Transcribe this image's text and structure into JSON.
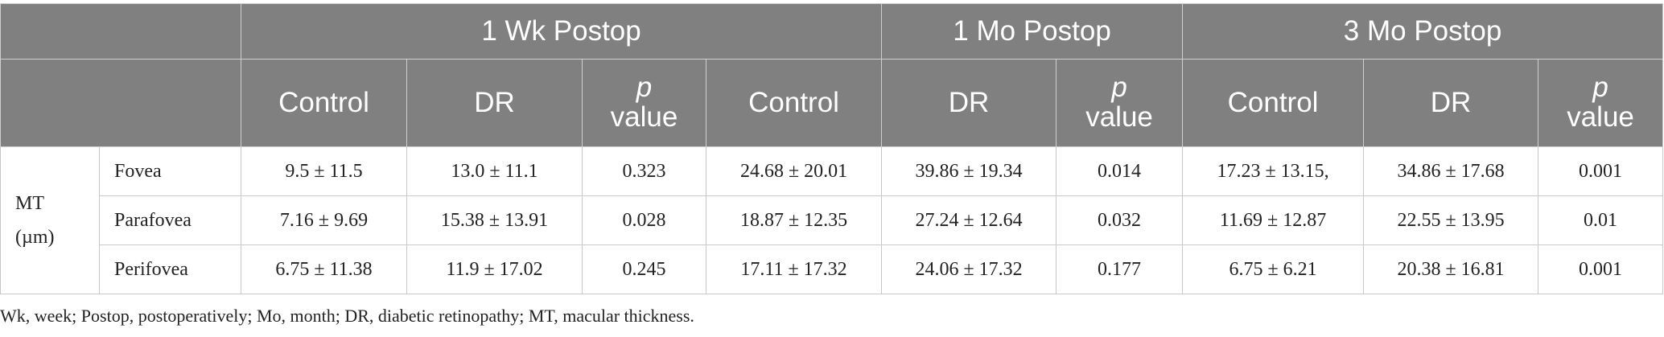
{
  "table": {
    "groups": [
      "1 Wk Postop",
      "1 Mo Postop",
      "3 Mo Postop"
    ],
    "subheaders": [
      "Control",
      "DR",
      [
        "p",
        "value"
      ],
      "Control",
      "DR",
      [
        "p",
        "value"
      ],
      "Control",
      "DR",
      [
        "p",
        "value"
      ]
    ],
    "row_group": [
      "MT",
      "(µm)"
    ],
    "rows": [
      {
        "label": "Fovea",
        "cells": [
          "9.5 ± 11.5",
          "13.0 ± 11.1",
          "0.323",
          "24.68 ± 20.01",
          "39.86 ± 19.34",
          "0.014",
          "17.23 ± 13.15,",
          "34.86 ± 17.68",
          "0.001"
        ]
      },
      {
        "label": "Parafovea",
        "cells": [
          "7.16 ± 9.69",
          "15.38 ± 13.91",
          "0.028",
          "18.87 ± 12.35",
          "27.24 ± 12.64",
          "0.032",
          "11.69 ± 12.87",
          "22.55 ± 13.95",
          "0.01"
        ]
      },
      {
        "label": "Perifovea",
        "cells": [
          "6.75 ± 11.38",
          "11.9 ± 17.02",
          "0.245",
          "17.11 ± 17.32",
          "24.06 ± 17.32",
          "0.177",
          "6.75 ± 6.21",
          "20.38 ± 16.81",
          "0.001"
        ]
      }
    ],
    "footnote": "Wk, week; Postop, postoperatively; Mo, month; DR, diabetic retinopathy; MT, macular thickness."
  }
}
